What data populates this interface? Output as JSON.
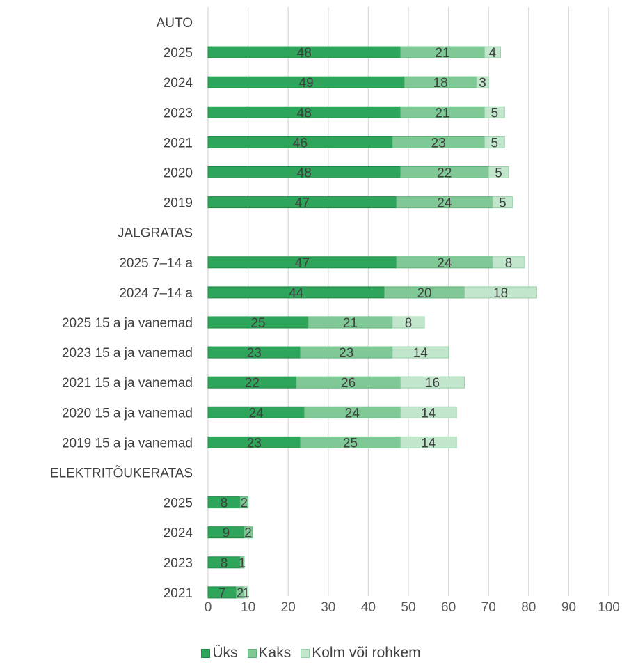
{
  "chart_data": {
    "type": "bar",
    "orientation": "horizontal",
    "stacked": true,
    "title": "",
    "xlabel": "",
    "ylabel": "",
    "xlim": [
      0,
      100
    ],
    "x_ticks": [
      0,
      10,
      20,
      30,
      40,
      50,
      60,
      70,
      80,
      90,
      100
    ],
    "grid": "vertical",
    "legend_position": "bottom",
    "categories": [
      "AUTO",
      "2025",
      "2024",
      "2023",
      "2021",
      "2020",
      "2019",
      "JALGRATAS",
      "2025 7–14 a",
      "2024 7–14 a",
      "2025 15 a ja vanemad",
      "2023 15 a ja vanemad",
      "2021 15 a ja vanemad",
      "2020 15 a ja vanemad",
      "2019 15 a ja vanemad",
      "ELEKTRITÕUKERATAS",
      "2025",
      "2024",
      "2023",
      "2021"
    ],
    "series": [
      {
        "name": "Üks",
        "color": "#2ea55a",
        "border": "#1f8a45",
        "values": [
          null,
          48,
          49,
          48,
          46,
          48,
          47,
          null,
          47,
          44,
          25,
          23,
          22,
          24,
          23,
          null,
          8,
          9,
          8,
          7
        ]
      },
      {
        "name": "Kaks",
        "color": "#80c996",
        "border": "#5cb377",
        "values": [
          null,
          21,
          18,
          21,
          23,
          22,
          24,
          null,
          24,
          20,
          21,
          23,
          26,
          24,
          25,
          null,
          2,
          2,
          1,
          2
        ]
      },
      {
        "name": "Kolm või rohkem",
        "color": "#c2e6cc",
        "border": "#96d0a7",
        "values": [
          null,
          4,
          3,
          5,
          5,
          5,
          5,
          null,
          8,
          18,
          8,
          14,
          16,
          14,
          14,
          null,
          null,
          null,
          null,
          1
        ]
      }
    ]
  }
}
